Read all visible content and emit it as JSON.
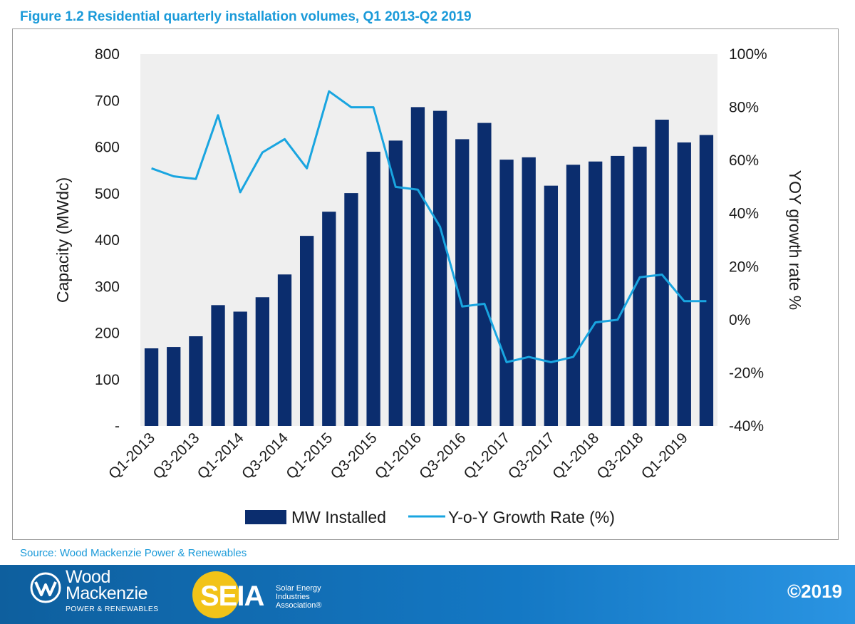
{
  "figure": {
    "title": "Figure 1.2 Residential quarterly installation volumes, Q1 2013-Q2 2019"
  },
  "source": "Source: Wood Mackenzie Power & Renewables",
  "footer": {
    "wood_mackenzie": {
      "line1": "Wood",
      "line2": "Mackenzie",
      "sub": "POWER & RENEWABLES"
    },
    "seia": {
      "mark": "SEIA",
      "tag1": "Solar Energy",
      "tag2": "Industries",
      "tag3": "Association®"
    },
    "copyright": "©2019"
  },
  "colors": {
    "bar": "#0b2d6e",
    "line": "#19a5e0",
    "plot_bg": "#efefef",
    "accent": "#1a9ad9"
  },
  "chart_data": {
    "type": "bar",
    "categories": [
      "Q1-2013",
      "Q2-2013",
      "Q3-2013",
      "Q4-2013",
      "Q1-2014",
      "Q2-2014",
      "Q3-2014",
      "Q4-2014",
      "Q1-2015",
      "Q2-2015",
      "Q3-2015",
      "Q4-2015",
      "Q1-2016",
      "Q2-2016",
      "Q3-2016",
      "Q4-2016",
      "Q1-2017",
      "Q2-2017",
      "Q3-2017",
      "Q4-2017",
      "Q1-2018",
      "Q2-2018",
      "Q3-2018",
      "Q4-2018",
      "Q1-2019",
      "Q2-2019"
    ],
    "x_tick_labels": [
      "Q1-2013",
      "",
      "Q3-2013",
      "",
      "Q1-2014",
      "",
      "Q3-2014",
      "",
      "Q1-2015",
      "",
      "Q3-2015",
      "",
      "Q1-2016",
      "",
      "Q3-2016",
      "",
      "Q1-2017",
      "",
      "Q3-2017",
      "",
      "Q1-2018",
      "",
      "Q3-2018",
      "",
      "Q1-2019",
      ""
    ],
    "series": [
      {
        "name": "MW Installed",
        "type": "bar",
        "axis": "left",
        "values": [
          167,
          170,
          193,
          260,
          246,
          277,
          326,
          409,
          461,
          501,
          590,
          614,
          686,
          678,
          617,
          652,
          573,
          578,
          517,
          562,
          569,
          581,
          601,
          659,
          610,
          626
        ]
      },
      {
        "name": "Y-o-Y Growth Rate (%)",
        "type": "line",
        "axis": "right",
        "values": [
          57,
          54,
          53,
          77,
          48,
          63,
          68,
          57,
          86,
          80,
          80,
          50,
          49,
          35,
          5,
          6,
          -16,
          -14,
          -16,
          -14,
          -1,
          0,
          16,
          17,
          7,
          7
        ]
      }
    ],
    "ylabel_left": "Capacity (MWdc)",
    "ylabel_right": "YOY growth rate %",
    "ylim_left": [
      0,
      800
    ],
    "ylim_right": [
      -40,
      100
    ],
    "y_ticks_left": [
      "-",
      "100",
      "200",
      "300",
      "400",
      "500",
      "600",
      "700",
      "800"
    ],
    "y_ticks_right": [
      "-40%",
      "-20%",
      "0%",
      "20%",
      "40%",
      "60%",
      "80%",
      "100%"
    ],
    "legend_position": "bottom",
    "grid": false
  }
}
